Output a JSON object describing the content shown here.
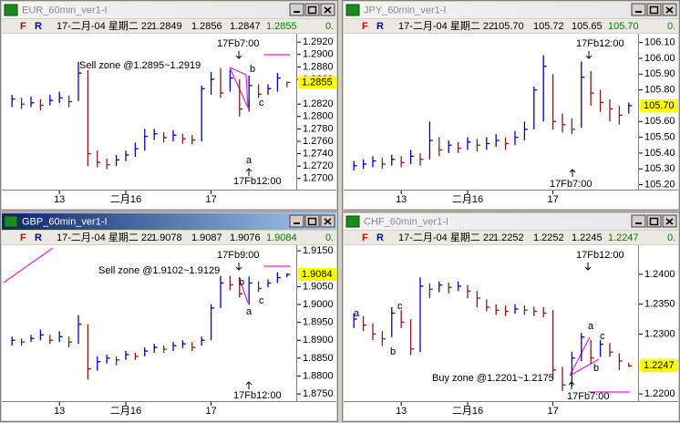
{
  "chart_data": [
    {
      "type": "ohlc",
      "title": "EUR_60min_ver1-I",
      "flags": [
        "F",
        "R"
      ],
      "quote": [
        "17-二月-04 星期二 22",
        "1.2849",
        "1.2856",
        "1.2847",
        "1.2855",
        "0."
      ],
      "colors": {
        "up": "#0000c8",
        "down": "#8b1a1a"
      },
      "xlim": [
        -0.5,
        29.5
      ],
      "xticks": [
        {
          "value": 5,
          "label": "13"
        },
        {
          "value": 12,
          "label": "二月16"
        },
        {
          "value": 21,
          "label": "17"
        }
      ],
      "ylim": [
        1.2685,
        1.2932
      ],
      "yticks": [
        {
          "value": 1.292,
          "label": "1.2920"
        },
        {
          "value": 1.29,
          "label": "1.2900"
        },
        {
          "value": 1.288,
          "label": "1.2880"
        },
        {
          "value": 1.286,
          "label": "1.2860"
        },
        {
          "value": 1.282,
          "label": "1.2820"
        },
        {
          "value": 1.28,
          "label": "1.2800"
        },
        {
          "value": 1.278,
          "label": "1.2780"
        },
        {
          "value": 1.276,
          "label": "1.2760"
        },
        {
          "value": 1.274,
          "label": "1.2740"
        },
        {
          "value": 1.272,
          "label": "1.2720"
        },
        {
          "value": 1.27,
          "label": "1.2700"
        }
      ],
      "close": [
        1.2828,
        1.282,
        1.2822,
        1.2818,
        1.2826,
        1.283,
        1.2824,
        1.287,
        1.274,
        1.2726,
        1.2722,
        1.273,
        1.2738,
        1.2748,
        1.2768,
        1.2772,
        1.2766,
        1.277,
        1.2764,
        1.2762,
        1.2845,
        1.286,
        1.2838,
        1.2862,
        1.2812,
        1.285,
        1.2836,
        1.2845,
        1.2862,
        1.2855
      ],
      "high": [
        1.2835,
        1.283,
        1.2832,
        1.2828,
        1.2835,
        1.284,
        1.2834,
        1.2888,
        1.2875,
        1.2745,
        1.2732,
        1.2738,
        1.2745,
        1.2758,
        1.278,
        1.278,
        1.2775,
        1.2778,
        1.2772,
        1.277,
        1.285,
        1.2872,
        1.2878,
        1.2875,
        1.286,
        1.2866,
        1.2852,
        1.2852,
        1.287,
        1.2856
      ],
      "low": [
        1.2815,
        1.2812,
        1.2815,
        1.281,
        1.2818,
        1.2822,
        1.2815,
        1.2825,
        1.272,
        1.2718,
        1.2715,
        1.272,
        1.2728,
        1.2735,
        1.2745,
        1.2762,
        1.2758,
        1.276,
        1.2756,
        1.2755,
        1.276,
        1.2835,
        1.283,
        1.284,
        1.28,
        1.2808,
        1.283,
        1.2835,
        1.284,
        1.2847
      ],
      "annotations": [
        "Sell zone @1.2895~1.2919",
        "17Fb7:00",
        "17Fb12:00",
        "a",
        "b",
        "c"
      ]
    },
    {
      "type": "ohlc",
      "title": "JPY_60min_ver1-I",
      "flags": [
        "F",
        "R"
      ],
      "quote": [
        "17-二月-04 星期二 22",
        "105.70",
        "105.72",
        "105.65",
        "105.70",
        "0."
      ],
      "colors": {
        "up": "#0000c8",
        "down": "#8b1a1a"
      },
      "xlim": [
        -0.5,
        29.5
      ],
      "xticks": [
        {
          "value": 5,
          "label": "13"
        },
        {
          "value": 12,
          "label": "二月16"
        },
        {
          "value": 21,
          "label": "17"
        }
      ],
      "ylim": [
        105.18,
        106.15
      ],
      "yticks": [
        {
          "value": 106.1,
          "label": "106.10"
        },
        {
          "value": 106,
          "label": "106.00"
        },
        {
          "value": 105.9,
          "label": "105.90"
        },
        {
          "value": 105.8,
          "label": "105.80"
        },
        {
          "value": 105.6,
          "label": "105.60"
        },
        {
          "value": 105.5,
          "label": "105.50"
        },
        {
          "value": 105.4,
          "label": "105.40"
        },
        {
          "value": 105.3,
          "label": "105.30"
        },
        {
          "value": 105.2,
          "label": "105.20"
        }
      ],
      "close": [
        105.32,
        105.33,
        105.35,
        105.33,
        105.36,
        105.34,
        105.38,
        105.36,
        105.48,
        105.42,
        105.45,
        105.43,
        105.47,
        105.45,
        105.46,
        105.48,
        105.46,
        105.5,
        105.55,
        105.8,
        105.95,
        105.6,
        105.58,
        105.55,
        105.88,
        105.78,
        105.72,
        105.68,
        105.64,
        105.7
      ],
      "high": [
        105.35,
        105.36,
        105.38,
        105.37,
        105.39,
        105.38,
        105.42,
        105.4,
        105.6,
        105.5,
        105.48,
        105.47,
        105.5,
        105.49,
        105.5,
        105.52,
        105.5,
        105.54,
        105.6,
        105.82,
        106.02,
        105.9,
        105.65,
        105.62,
        105.98,
        105.92,
        105.8,
        105.74,
        105.7,
        105.72
      ],
      "low": [
        105.29,
        105.3,
        105.31,
        105.3,
        105.32,
        105.31,
        105.33,
        105.32,
        105.36,
        105.38,
        105.4,
        105.4,
        105.42,
        105.41,
        105.42,
        105.44,
        105.42,
        105.45,
        105.48,
        105.55,
        105.6,
        105.55,
        105.53,
        105.52,
        105.56,
        105.7,
        105.66,
        105.6,
        105.58,
        105.65
      ],
      "annotations": [
        "17Fb12:00",
        "17Fb7:00"
      ]
    },
    {
      "type": "ohlc",
      "title": "GBP_60min_ver1-I",
      "flags": [
        "F",
        "R"
      ],
      "quote": [
        "17-二月-04 星期二 22",
        "1.9078",
        "1.9087",
        "1.9076",
        "1.9084",
        "0."
      ],
      "colors": {
        "up": "#0000c8",
        "down": "#8b1a1a"
      },
      "xlim": [
        -0.5,
        29.5
      ],
      "xticks": [
        {
          "value": 5,
          "label": "13"
        },
        {
          "value": 12,
          "label": "二月16"
        },
        {
          "value": 21,
          "label": "17"
        }
      ],
      "ylim": [
        1.8735,
        1.9163
      ],
      "yticks": [
        {
          "value": 1.915,
          "label": "1.9150"
        },
        {
          "value": 1.905,
          "label": "1.9050"
        },
        {
          "value": 1.9,
          "label": "1.9000"
        },
        {
          "value": 1.895,
          "label": "1.8950"
        },
        {
          "value": 1.89,
          "label": "1.8900"
        },
        {
          "value": 1.885,
          "label": "1.8850"
        },
        {
          "value": 1.88,
          "label": "1.8800"
        },
        {
          "value": 1.875,
          "label": "1.8750"
        }
      ],
      "close": [
        1.89,
        1.8895,
        1.8905,
        1.8915,
        1.89,
        1.891,
        1.8895,
        1.8945,
        1.882,
        1.884,
        1.885,
        1.8845,
        1.886,
        1.8855,
        1.887,
        1.888,
        1.8875,
        1.8885,
        1.889,
        1.888,
        1.89,
        1.899,
        1.906,
        1.9055,
        1.903,
        1.906,
        1.9045,
        1.906,
        1.9075,
        1.9084
      ],
      "high": [
        1.891,
        1.8905,
        1.8915,
        1.893,
        1.8915,
        1.8925,
        1.891,
        1.897,
        1.8945,
        1.8855,
        1.886,
        1.8855,
        1.887,
        1.8865,
        1.888,
        1.889,
        1.8885,
        1.8895,
        1.89,
        1.8895,
        1.891,
        1.9,
        1.908,
        1.908,
        1.9075,
        1.9078,
        1.9065,
        1.907,
        1.909,
        1.9087
      ],
      "low": [
        1.8885,
        1.8885,
        1.8895,
        1.89,
        1.889,
        1.8895,
        1.888,
        1.889,
        1.879,
        1.8815,
        1.8835,
        1.883,
        1.8845,
        1.8845,
        1.8855,
        1.8865,
        1.8865,
        1.887,
        1.8878,
        1.887,
        1.8885,
        1.89,
        1.899,
        1.904,
        1.902,
        1.9,
        1.9035,
        1.9048,
        1.906,
        1.9076
      ],
      "annotations": [
        "Sell zone @1.9102~1.9129",
        "17Fb9:00",
        "17Fb12:00",
        "a",
        "b",
        "c"
      ]
    },
    {
      "type": "ohlc",
      "title": "CHF_60min_ver1-I",
      "flags": [
        "F",
        "R"
      ],
      "quote": [
        "17-二月-04 星期二 22",
        "1.2252",
        "1.2252",
        "1.2245",
        "1.2247",
        "0."
      ],
      "colors": {
        "up": "#0000c8",
        "down": "#8b1a1a"
      },
      "xlim": [
        -0.5,
        29.5
      ],
      "xticks": [
        {
          "value": 5,
          "label": "13"
        },
        {
          "value": 12,
          "label": "二月16"
        },
        {
          "value": 21,
          "label": "17"
        }
      ],
      "ylim": [
        1.2191,
        1.2447
      ],
      "yticks": [
        {
          "value": 1.24,
          "label": "1.2400"
        },
        {
          "value": 1.235,
          "label": "1.2350"
        },
        {
          "value": 1.23,
          "label": "1.2300"
        },
        {
          "value": 1.22,
          "label": "1.2200"
        }
      ],
      "close": [
        1.2325,
        1.2315,
        1.23,
        1.2292,
        1.2335,
        1.232,
        1.2275,
        1.238,
        1.2375,
        1.2382,
        1.2378,
        1.238,
        1.2372,
        1.236,
        1.2345,
        1.234,
        1.2338,
        1.2342,
        1.234,
        1.2338,
        1.2335,
        1.224,
        1.2215,
        1.226,
        1.2295,
        1.226,
        1.2283,
        1.227,
        1.2255,
        1.2247
      ],
      "high": [
        1.2335,
        1.233,
        1.2318,
        1.2305,
        1.2345,
        1.234,
        1.2325,
        1.2395,
        1.2385,
        1.2388,
        1.2386,
        1.2388,
        1.2382,
        1.2372,
        1.2358,
        1.235,
        1.2348,
        1.235,
        1.2348,
        1.2346,
        1.2345,
        1.234,
        1.2245,
        1.227,
        1.2302,
        1.229,
        1.229,
        1.2285,
        1.2268,
        1.2252
      ],
      "low": [
        1.231,
        1.2305,
        1.229,
        1.228,
        1.2295,
        1.231,
        1.2265,
        1.227,
        1.236,
        1.237,
        1.2368,
        1.2372,
        1.236,
        1.2345,
        1.2338,
        1.2332,
        1.233,
        1.2334,
        1.2332,
        1.233,
        1.2328,
        1.2225,
        1.2205,
        1.2212,
        1.2255,
        1.225,
        1.2262,
        1.2262,
        1.224,
        1.2245
      ],
      "annotations": [
        "17Fb12:00",
        "Buy zone @1.2201~1.2175",
        "17Fb7:00",
        "a",
        "b",
        "c",
        "a",
        "b",
        "c"
      ]
    }
  ]
}
